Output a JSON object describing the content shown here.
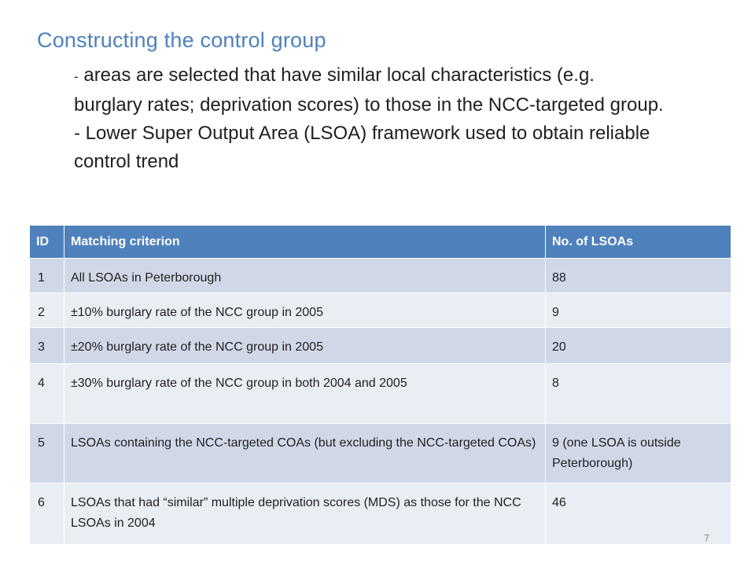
{
  "slide": {
    "title": "Constructing the control group",
    "bullets": [
      {
        "dash": "-",
        "text": " areas are selected that have similar local characteristics (e.g. burglary rates; deprivation scores) to those in the NCC-targeted group."
      },
      {
        "dash": "-",
        "text": " Lower Super Output Area (LSOA) framework used to obtain reliable control trend"
      }
    ],
    "page_number": "7"
  },
  "table": {
    "headers": [
      "ID",
      "Matching criterion",
      "No. of LSOAs"
    ],
    "rows": [
      {
        "id": "1",
        "criterion": "All LSOAs in Peterborough",
        "count": "88"
      },
      {
        "id": "2",
        "criterion": "±10% burglary rate of the NCC group in 2005",
        "count": "9"
      },
      {
        "id": "3",
        "criterion": "±20% burglary rate of the NCC group in 2005",
        "count": "20"
      },
      {
        "id": "4",
        "criterion": "±30% burglary rate of the NCC group in both 2004 and 2005",
        "count": "8"
      },
      {
        "id": "5",
        "criterion": "LSOAs containing the NCC-targeted COAs (but excluding the NCC-targeted COAs)",
        "count": "9 (one LSOA is outside Peterborough)"
      },
      {
        "id": "6",
        "criterion": "LSOAs that had “similar” multiple deprivation scores (MDS) as those for the NCC LSOAs in 2004",
        "count": "46"
      }
    ]
  },
  "colors": {
    "title": "#4f81bd",
    "header_bg": "#4f81bd",
    "row_dark": "#d0d8e8",
    "row_light": "#e9edf4"
  }
}
